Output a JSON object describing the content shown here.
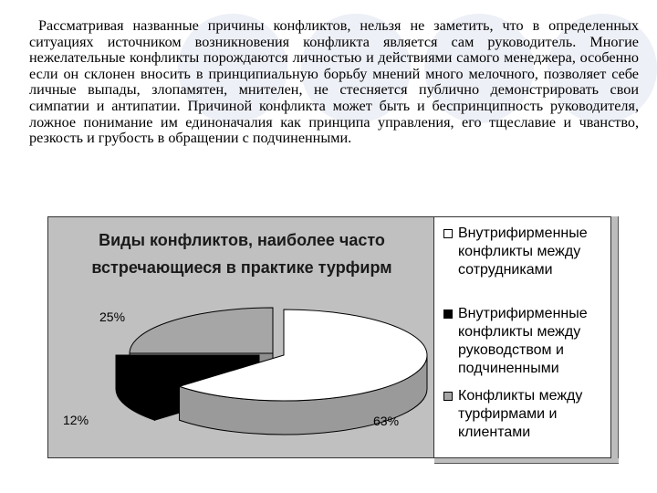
{
  "paragraph": "Рассматривая названные причины конфликтов, нельзя не заметить, что в определенных ситуациях источником возникновения конфликта является сам руководитель. Многие нежелательные конфликты порождаются личностью и действиями самого менеджера, особенно если он склонен вносить в принципиальную борьбу мнений много мелочного, позволяет себе личные выпады, злопамятен, мнителен, не стесняется публично демонстрировать свои симпатии и антипатии. Причиной конфликта может быть и беспринципность руководителя, ложное понимание им единоначалия как принципа управления, его тщеславие и чванство, резкость и грубость в обращении с подчиненными.",
  "chart_data": {
    "type": "pie",
    "style": "3d-exploded",
    "title": "Виды конфликтов, наиболее часто встречающиеся в практике турфирм",
    "categories": [
      "Внутрифирменные конфликты между сотрудниками",
      "Внутрифирменные конфликты между руководством и подчиненными",
      "Конфликты между турфирмами и клиентами"
    ],
    "values": [
      63,
      12,
      25
    ],
    "labels": [
      "63%",
      "12%",
      "25%"
    ],
    "colors": [
      "#ffffff",
      "#000000",
      "#a6a6a6"
    ],
    "legend_position": "right"
  }
}
